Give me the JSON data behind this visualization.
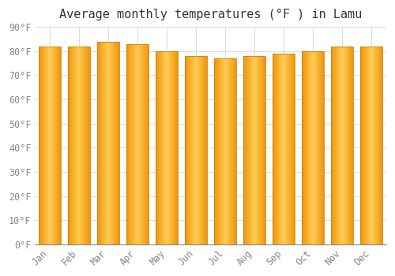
{
  "title": "Average monthly temperatures (°F ) in Lamu",
  "months": [
    "Jan",
    "Feb",
    "Mar",
    "Apr",
    "May",
    "Jun",
    "Jul",
    "Aug",
    "Sep",
    "Oct",
    "Nov",
    "Dec"
  ],
  "values": [
    82,
    82,
    84,
    83,
    80,
    78,
    77,
    78,
    79,
    80,
    82,
    82
  ],
  "ylim": [
    0,
    90
  ],
  "yticks": [
    0,
    10,
    20,
    30,
    40,
    50,
    60,
    70,
    80,
    90
  ],
  "bar_color_center": "#FFCC55",
  "bar_color_edge": "#F0950A",
  "bar_outline_color": "#C8820A",
  "background_color": "#FFFFFF",
  "grid_color": "#DDDDDD",
  "title_fontsize": 11,
  "tick_fontsize": 8.5
}
